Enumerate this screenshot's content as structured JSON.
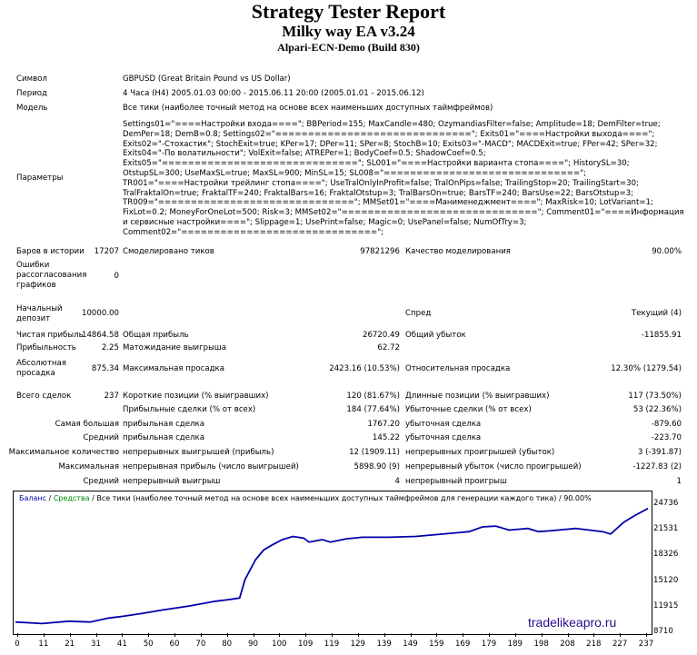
{
  "header": {
    "title": "Strategy Tester Report",
    "ea": "Milky way EA v3.24",
    "server": "Alpari-ECN-Demo (Build 830)"
  },
  "info": [
    {
      "label": "Символ",
      "value": "GBPUSD (Great Britain Pound vs US Dollar)"
    },
    {
      "label": "Период",
      "value": "4 Часа (H4) 2005.01.03 00:00 - 2015.06.11 20:00 (2005.01.01 - 2015.06.12)"
    },
    {
      "label": "Модель",
      "value": "Все тики (наиболее точный метод на основе всех наименьших доступных таймфреймов)"
    }
  ],
  "params_label": "Параметры",
  "params_text": "Settings01=\"====Настройки входа====\"; BBPeriod=155; MaxCandle=480; OzymandiasFilter=false; Amplitude=18; DemFilter=true; DemPer=18; DemB=0.8; Settings02=\"==============================\"; Exits01=\"====Настройки выхода====\"; Exits02=\"-Стохастик\"; StochExit=true; KPer=17; DPer=11; SPer=8; StochB=10; Exits03=\"-MACD\"; MACDExit=true; FPer=42; SPer=32; Exits04=\"-По волатильности\"; VolExit=false; ATREPer=1; BodyCoef=0.5; ShadowCoef=0.5; Exits05=\"==============================\"; SL001=\"====Настройки варианта стопа====\"; HistorySL=30; OtstupSL=300; UseMaxSL=true; MaxSL=900; MinSL=15; SL008=\"==============================\"; TR001=\"====Настройки трейлинг стопа====\"; UseTralOnlyInProfit=false; TralOnPips=false; TrailingStop=20; TrailingStart=30; TralFraktalOn=true; FraktalTF=240; FraktalBars=16; FraktalOtstup=3; TralBarsOn=true; BarsTF=240; BarsUse=22; BarsOtstup=3; TR009=\"==============================\"; MMSet01=\"====Манименеджмент====\"; MaxRisk=10; LotVariant=1; FixLot=0.2; MoneyForOneLot=500; Risk=3; MMSet02=\"==============================\"; Comment01=\"====Информация и сервисные настройки====\"; Slippage=1; UsePrint=false; Magic=0; UsePanel=false; NumOfTry=3; Comment02=\"==============================\";",
  "stats": {
    "bars_label": "Баров в истории",
    "bars": "17207",
    "ticks_label": "Смоделировано тиков",
    "ticks": "97821296",
    "quality_label": "Качество моделирования",
    "quality": "90.00%",
    "mismatch_label": "Ошибки рассогласования графиков",
    "mismatch": "0",
    "deposit_label": "Начальный депозит",
    "deposit": "10000.00",
    "spread_label": "Спред",
    "spread": "Текущий (4)",
    "netprofit_label": "Чистая прибыль",
    "netprofit": "14864.58",
    "grossprofit_label": "Общая прибыль",
    "grossprofit": "26720.49",
    "grossloss_label": "Общий убыток",
    "grossloss": "-11855.91",
    "pf_label": "Прибыльность",
    "pf": "2.25",
    "expected_label": "Матожидание выигрыша",
    "expected": "62.72",
    "absdd_label": "Абсолютная просадка",
    "absdd": "875.34",
    "maxdd_label": "Максимальная просадка",
    "maxdd": "2423.16 (10.53%)",
    "reldd_label": "Относительная просадка",
    "reldd": "12.30% (1279.54)",
    "trades_label": "Всего сделок",
    "trades": "237",
    "short_label": "Короткие позиции (% выигравших)",
    "short": "120 (81.67%)",
    "long_label": "Длинные позиции (% выигравших)",
    "long": "117 (73.50%)",
    "profit_trades_label": "Прибыльные сделки (% от всех)",
    "profit_trades": "184 (77.64%)",
    "loss_trades_label": "Убыточные сделки (% от всех)",
    "loss_trades": "53 (22.36%)",
    "largest_label": "Самая большая",
    "largest_p_label": "прибыльная сделка",
    "largest_p": "1767.20",
    "largest_l_label": "убыточная сделка",
    "largest_l": "-879.60",
    "average_label": "Средний",
    "average_p_label": "прибыльная сделка",
    "average_p": "145.22",
    "average_l_label": "убыточная сделка",
    "average_l": "-223.70",
    "maxcons_label": "Максимальное количество",
    "maxcons_w_label": "непрерывных выигрышей (прибыль)",
    "maxcons_w": "12 (1909.11)",
    "maxcons_l_label": "непрерывных проигрышей (убыток)",
    "maxcons_l": "3 (-391.87)",
    "maxconsp_label": "Максимальная",
    "maxconsp_w_label": "непрерывная прибыль (число выигрышей)",
    "maxconsp_w": "5898.90 (9)",
    "maxconsp_l_label": "непрерывный убыток (число проигрышей)",
    "maxconsp_l": "-1227.83 (2)",
    "avgcons_label": "Средний",
    "avgcons_w_label": "непрерывный выигрыш",
    "avgcons_w": "4",
    "avgcons_l_label": "непрерывный проигрыш",
    "avgcons_l": "1"
  },
  "chart_data": {
    "type": "line",
    "legend_balance": "Баланс",
    "legend_sep": " / ",
    "legend_equity": "Средства",
    "legend_rest": " / Все тики (наиболее точный метод на основе всех наименьших доступных таймфреймов для генерации каждого тика) / 90.00%",
    "balance_color": "#0000aa",
    "equity_color": "#008800",
    "ylim": [
      8710,
      24736
    ],
    "y_ticks": [
      "24736",
      "21531",
      "18326",
      "15120",
      "11915",
      "8710"
    ],
    "x_ticks": [
      "0",
      "11",
      "21",
      "31",
      "41",
      "50",
      "60",
      "70",
      "80",
      "90",
      "100",
      "109",
      "119",
      "129",
      "139",
      "149",
      "159",
      "169",
      "179",
      "189",
      "198",
      "208",
      "218",
      "227",
      "237"
    ],
    "x": [
      0,
      10,
      20,
      28,
      35,
      40,
      48,
      55,
      65,
      75,
      80,
      84,
      86,
      90,
      93,
      96,
      100,
      104,
      108,
      110,
      115,
      118,
      124,
      130,
      140,
      150,
      160,
      170,
      175,
      180,
      185,
      192,
      196,
      200,
      210,
      220,
      223,
      228,
      232,
      237
    ],
    "y": [
      10000,
      9800,
      10100,
      10000,
      10500,
      10700,
      11100,
      11500,
      12000,
      12600,
      12800,
      13000,
      15300,
      17800,
      19000,
      19600,
      20300,
      20700,
      20500,
      20000,
      20300,
      20000,
      20400,
      20600,
      20600,
      20700,
      21000,
      21300,
      21900,
      22000,
      21500,
      21700,
      21300,
      21400,
      21700,
      21300,
      21000,
      22500,
      23300,
      24200
    ]
  },
  "watermark": "tradelikeapro.ru"
}
